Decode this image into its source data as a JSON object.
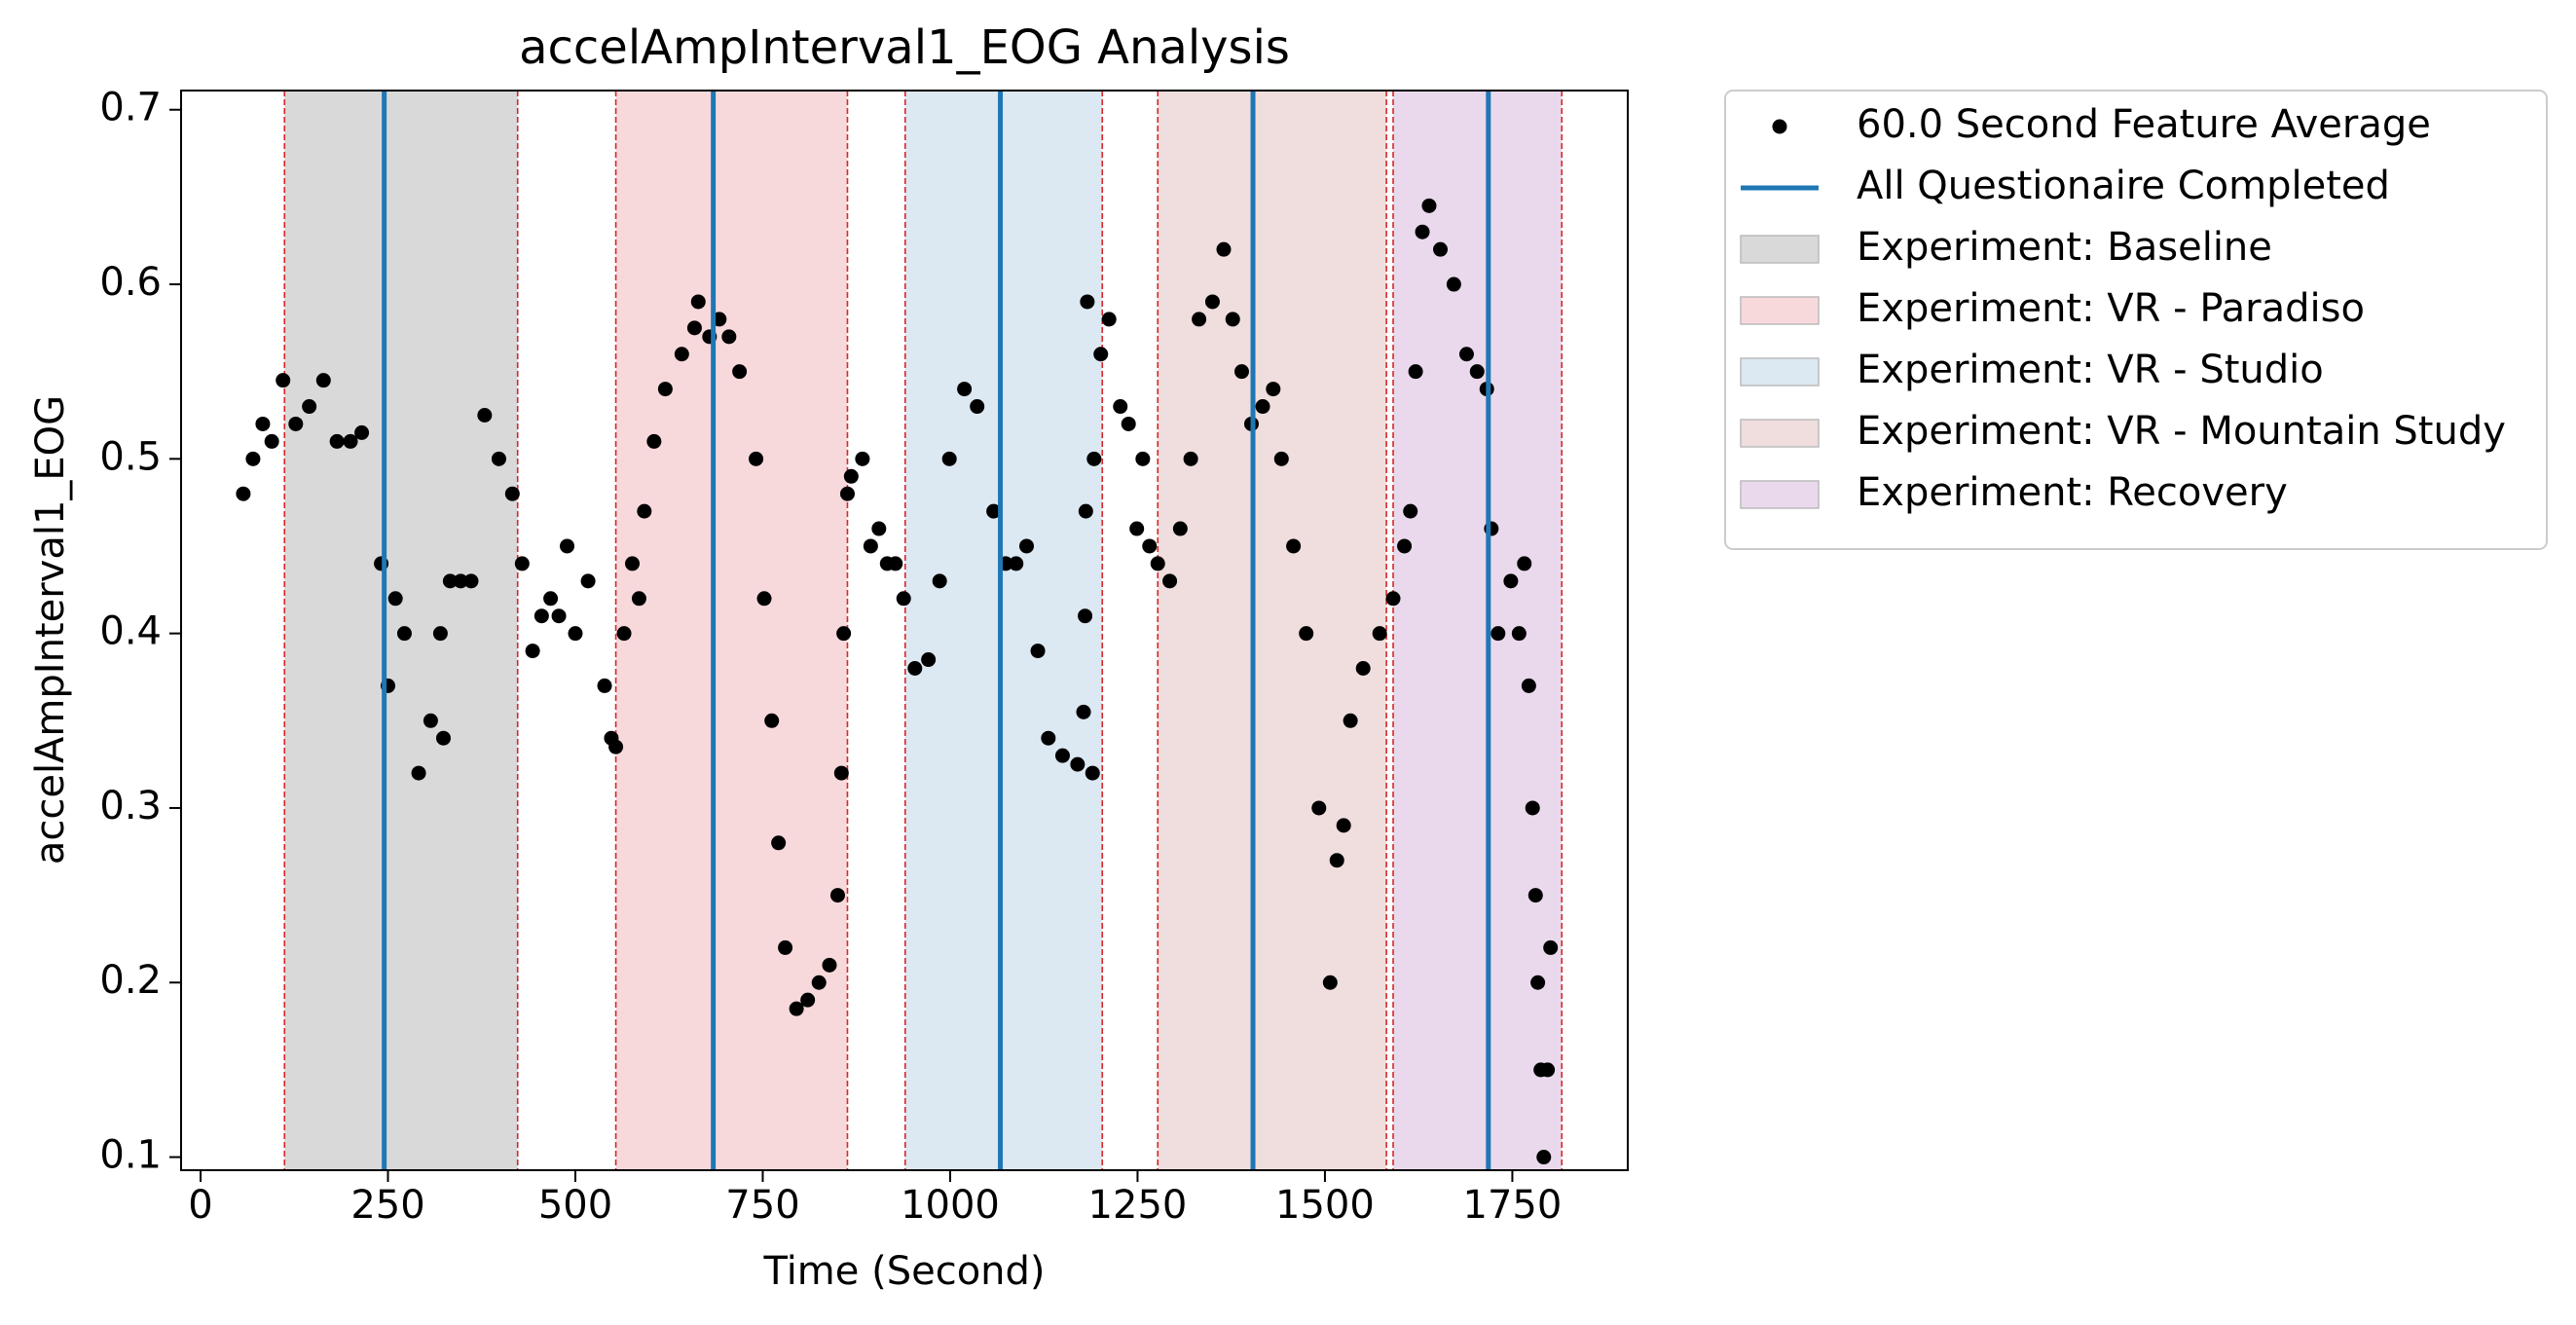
{
  "chart_data": {
    "type": "scatter",
    "title": "accelAmpInterval1_EOG Analysis",
    "x_label": "Time (Second)",
    "y_label": "accelAmpInterval1_EOG",
    "xlim": [
      -26,
      1904
    ],
    "ylim": [
      0.0925,
      0.711
    ],
    "xticks": [
      0,
      250,
      500,
      750,
      1000,
      1250,
      1500,
      1750
    ],
    "yticks": [
      0.1,
      0.2,
      0.3,
      0.4,
      0.5,
      0.6,
      0.7
    ],
    "series": [
      {
        "name": "60.0 Second Feature Average",
        "color": "#000000",
        "x": [
          57,
          70,
          83,
          95,
          110,
          127,
          145,
          164,
          182,
          200,
          215,
          241,
          250,
          260,
          272,
          291,
          307,
          324,
          320,
          333,
          347,
          361,
          379,
          398,
          416,
          429,
          443,
          455,
          467,
          478,
          489,
          500,
          517,
          539,
          548,
          554,
          565,
          576,
          585,
          592,
          605,
          620,
          642,
          659,
          664,
          679,
          692,
          705,
          719,
          741,
          752,
          762,
          771,
          780,
          795,
          810,
          825,
          839,
          850,
          855,
          858,
          863,
          868,
          883,
          894,
          905,
          916,
          927,
          938,
          953,
          971,
          986,
          999,
          1019,
          1036,
          1058,
          1074,
          1088,
          1102,
          1117,
          1131,
          1150,
          1170,
          1190,
          1178,
          1180,
          1181,
          1183,
          1192,
          1201,
          1212,
          1227,
          1238,
          1249,
          1257,
          1266,
          1277,
          1293,
          1307,
          1321,
          1332,
          1350,
          1365,
          1377,
          1389,
          1402,
          1417,
          1431,
          1442,
          1458,
          1475,
          1492,
          1507,
          1516,
          1525,
          1534,
          1551,
          1573,
          1591,
          1606,
          1614,
          1621,
          1630,
          1639,
          1654,
          1672,
          1689,
          1703,
          1716,
          1722,
          1731,
          1748,
          1759,
          1766,
          1772,
          1777,
          1781,
          1784,
          1788,
          1792,
          1797,
          1801
        ],
        "values": [
          0.48,
          0.5,
          0.52,
          0.51,
          0.545,
          0.52,
          0.53,
          0.545,
          0.51,
          0.51,
          0.515,
          0.44,
          0.37,
          0.42,
          0.4,
          0.32,
          0.35,
          0.34,
          0.4,
          0.43,
          0.43,
          0.43,
          0.525,
          0.5,
          0.48,
          0.44,
          0.39,
          0.41,
          0.42,
          0.41,
          0.45,
          0.4,
          0.43,
          0.37,
          0.34,
          0.335,
          0.4,
          0.44,
          0.42,
          0.47,
          0.51,
          0.54,
          0.56,
          0.575,
          0.59,
          0.57,
          0.58,
          0.57,
          0.55,
          0.5,
          0.42,
          0.35,
          0.28,
          0.22,
          0.185,
          0.19,
          0.2,
          0.21,
          0.25,
          0.32,
          0.4,
          0.48,
          0.49,
          0.5,
          0.45,
          0.46,
          0.44,
          0.44,
          0.42,
          0.38,
          0.385,
          0.43,
          0.5,
          0.54,
          0.53,
          0.47,
          0.44,
          0.44,
          0.45,
          0.39,
          0.34,
          0.33,
          0.325,
          0.32,
          0.355,
          0.41,
          0.47,
          0.59,
          0.5,
          0.56,
          0.58,
          0.53,
          0.52,
          0.46,
          0.5,
          0.45,
          0.44,
          0.43,
          0.46,
          0.5,
          0.58,
          0.59,
          0.62,
          0.58,
          0.55,
          0.52,
          0.53,
          0.54,
          0.5,
          0.45,
          0.4,
          0.3,
          0.2,
          0.27,
          0.29,
          0.35,
          0.38,
          0.4,
          0.42,
          0.45,
          0.47,
          0.55,
          0.63,
          0.645,
          0.62,
          0.6,
          0.56,
          0.55,
          0.54,
          0.46,
          0.4,
          0.43,
          0.4,
          0.44,
          0.37,
          0.3,
          0.25,
          0.2,
          0.15,
          0.1,
          0.15,
          0.22
        ]
      }
    ],
    "vlines": {
      "name": "All Questionaire Completed",
      "color": "#1f77b4",
      "x": [
        245,
        684,
        1067,
        1404,
        1718
      ]
    },
    "region_edge_color": "#d62728",
    "regions": [
      {
        "name": "Experiment: Baseline",
        "color": "#d9d9d9",
        "start": 112,
        "end": 423
      },
      {
        "name": "Experiment: VR - Paradiso",
        "color": "#f7d9dc",
        "start": 554,
        "end": 863
      },
      {
        "name": "Experiment: VR - Studio",
        "color": "#dce8f2",
        "start": 940,
        "end": 1203
      },
      {
        "name": "Experiment: VR - Mountain Study",
        "color": "#efdedd",
        "start": 1277,
        "end": 1582
      },
      {
        "name": "Experiment: Recovery",
        "color": "#ead9ec",
        "start": 1591,
        "end": 1816
      }
    ]
  }
}
